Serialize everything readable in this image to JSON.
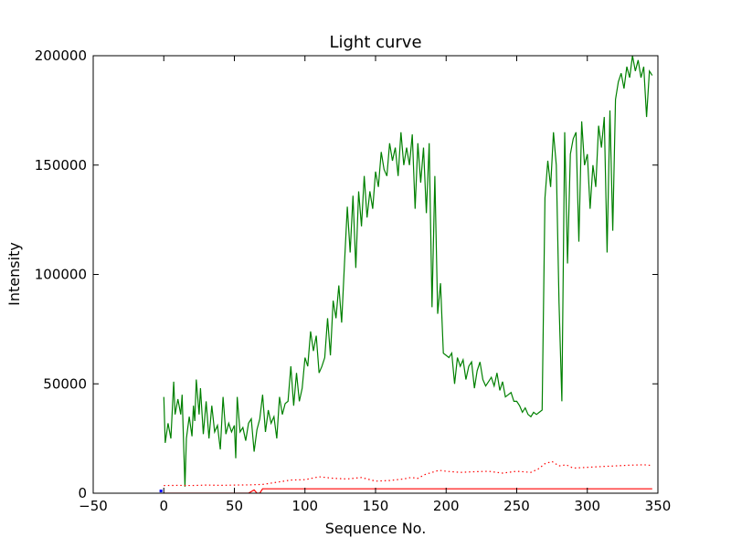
{
  "chart_data": {
    "type": "line",
    "title": "Light curve",
    "xlabel": "Sequence No.",
    "ylabel": "Intensity",
    "xlim": [
      -50,
      350
    ],
    "ylim": [
      0,
      200000
    ],
    "xticks": [
      -50,
      0,
      50,
      100,
      150,
      200,
      250,
      300,
      350
    ],
    "yticks": [
      0,
      50000,
      100000,
      150000,
      200000
    ],
    "xtick_labels": [
      "−50",
      "0",
      "50",
      "100",
      "150",
      "200",
      "250",
      "300",
      "350"
    ],
    "ytick_labels": [
      "0",
      "50000",
      "100000",
      "150000",
      "200000"
    ],
    "grid": false,
    "series": [
      {
        "color": "#008000",
        "style": "solid",
        "x": [
          0,
          1,
          3,
          5,
          7,
          8,
          10,
          12,
          13,
          15,
          16,
          18,
          20,
          21,
          22,
          23,
          25,
          26,
          28,
          30,
          32,
          34,
          36,
          38,
          40,
          42,
          44,
          46,
          48,
          50,
          51,
          52,
          54,
          56,
          58,
          60,
          62,
          64,
          66,
          68,
          70,
          72,
          74,
          76,
          78,
          80,
          82,
          84,
          86,
          88,
          90,
          92,
          94,
          96,
          98,
          100,
          102,
          104,
          106,
          108,
          110,
          112,
          114,
          116,
          118,
          120,
          122,
          124,
          126,
          128,
          130,
          132,
          134,
          136,
          138,
          140,
          142,
          144,
          146,
          148,
          150,
          152,
          154,
          156,
          158,
          160,
          162,
          164,
          166,
          168,
          170,
          172,
          174,
          176,
          178,
          180,
          182,
          184,
          186,
          188,
          190,
          192,
          194,
          196,
          198,
          200,
          202,
          204,
          206,
          208,
          210,
          212,
          214,
          216,
          218,
          220,
          222,
          224,
          226,
          228,
          230,
          232,
          234,
          236,
          238,
          240,
          242,
          244,
          246,
          248,
          250,
          252,
          254,
          256,
          258,
          260,
          262,
          264,
          266,
          268,
          270,
          272,
          274,
          276,
          278,
          280,
          282,
          284,
          286,
          288,
          290,
          292,
          294,
          296,
          298,
          300,
          302,
          304,
          306,
          308,
          310,
          312,
          314,
          316,
          318,
          320,
          322,
          324,
          326,
          328,
          330,
          332,
          334,
          336,
          338,
          340,
          342,
          344,
          346
        ],
        "y": [
          44000,
          23000,
          32000,
          25000,
          51000,
          36000,
          43000,
          36000,
          45000,
          3000,
          25000,
          35000,
          26000,
          40000,
          33000,
          52000,
          36000,
          48000,
          27000,
          42000,
          25000,
          40000,
          28000,
          31000,
          20000,
          44000,
          27000,
          32000,
          28000,
          31000,
          16000,
          44000,
          28000,
          30000,
          24000,
          32000,
          34000,
          19000,
          29000,
          34000,
          45000,
          28000,
          38000,
          32000,
          35000,
          25000,
          44000,
          36000,
          41000,
          42000,
          58000,
          40000,
          55000,
          42000,
          48000,
          62000,
          58000,
          74000,
          65000,
          72000,
          55000,
          58000,
          62000,
          80000,
          63000,
          88000,
          80000,
          95000,
          78000,
          105000,
          131000,
          110000,
          136000,
          103000,
          138000,
          122000,
          145000,
          126000,
          138000,
          130000,
          147000,
          140000,
          156000,
          148000,
          145000,
          160000,
          152000,
          158000,
          145000,
          165000,
          150000,
          158000,
          150000,
          164000,
          130000,
          160000,
          142000,
          158000,
          128000,
          160000,
          85000,
          145000,
          82000,
          96000,
          64000,
          63000,
          62000,
          64000,
          50000,
          62000,
          58000,
          61000,
          52000,
          58000,
          60000,
          48000,
          56000,
          60000,
          52000,
          49000,
          51000,
          53000,
          49000,
          55000,
          47000,
          51000,
          44000,
          45000,
          46000,
          42000,
          42000,
          40000,
          37000,
          39000,
          36000,
          35000,
          37000,
          36000,
          37000,
          38000,
          135000,
          152000,
          140000,
          165000,
          150000,
          87000,
          42000,
          165000,
          105000,
          155000,
          162000,
          165000,
          115000,
          170000,
          150000,
          155000,
          130000,
          150000,
          140000,
          168000,
          158000,
          172000,
          110000,
          175000,
          120000,
          180000,
          188000,
          192000,
          185000,
          195000,
          190000,
          200000,
          193000,
          198000,
          190000,
          195000,
          172000,
          193000,
          191000
        ],
        "step": 2
      },
      {
        "color": "#ff0000",
        "style": "dotted",
        "x": [
          0,
          10,
          20,
          30,
          40,
          50,
          60,
          70,
          80,
          90,
          100,
          110,
          120,
          130,
          140,
          150,
          160,
          170,
          175,
          180,
          185,
          190,
          195,
          200,
          210,
          220,
          230,
          240,
          250,
          260,
          265,
          270,
          275,
          280,
          285,
          290,
          300,
          310,
          320,
          330,
          340,
          346
        ],
        "y": [
          3500,
          3600,
          3500,
          3700,
          3600,
          3700,
          3800,
          4000,
          5000,
          6000,
          6200,
          7500,
          6800,
          6500,
          7200,
          5500,
          5800,
          6500,
          7200,
          6800,
          8500,
          9500,
          10500,
          10000,
          9500,
          9800,
          10000,
          9200,
          10000,
          9500,
          11000,
          13500,
          14500,
          12500,
          13000,
          11500,
          11800,
          12200,
          12500,
          12800,
          13000,
          12700
        ],
        "step": 1
      },
      {
        "color": "#ff0000",
        "style": "solid",
        "x": [
          0,
          60,
          64,
          66,
          68,
          70,
          100,
          150,
          200,
          250,
          300,
          346
        ],
        "y": [
          0,
          0,
          1500,
          0,
          0,
          2000,
          2000,
          2000,
          2000,
          2000,
          2000,
          2000
        ],
        "step": 1
      },
      {
        "color": "#0000ff",
        "style": "solid",
        "x": [
          -3,
          -1
        ],
        "y": [
          1000,
          1000
        ],
        "step": 1
      }
    ]
  }
}
